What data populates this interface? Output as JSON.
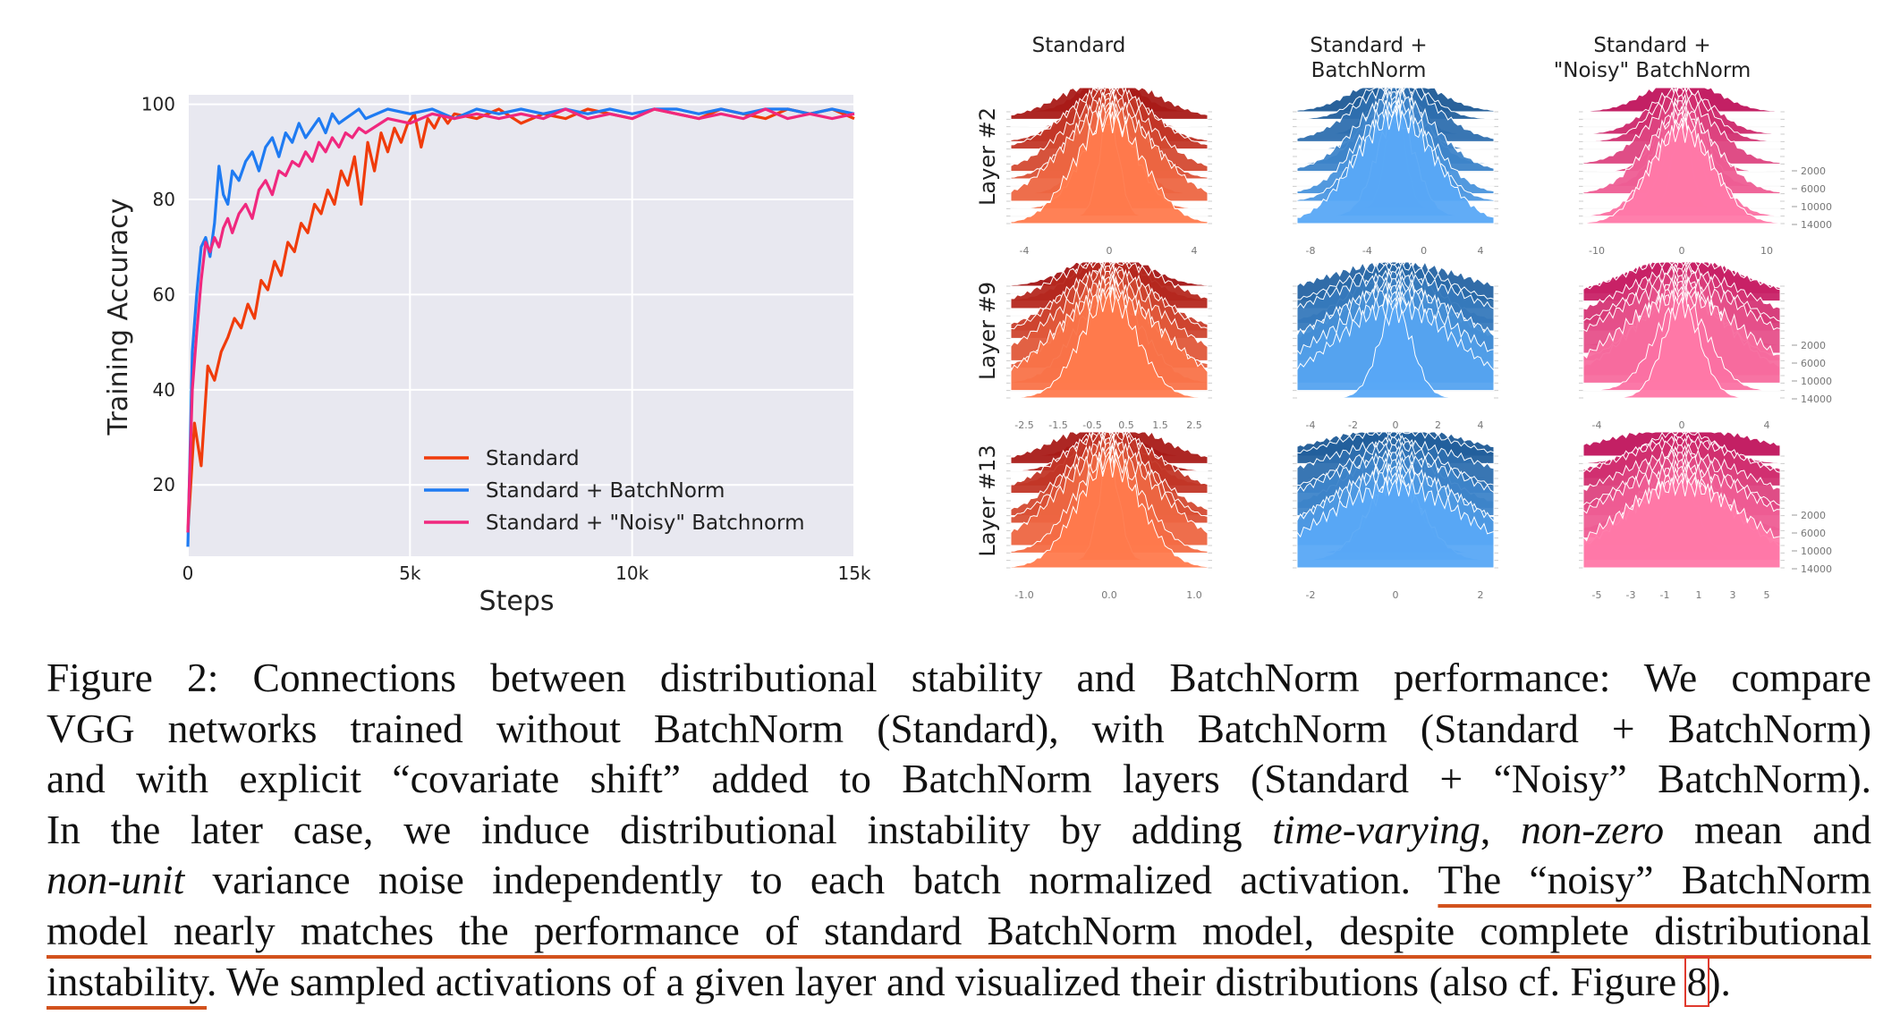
{
  "chart_data": [
    {
      "type": "line",
      "xlabel": "Steps",
      "ylabel": "Training Accuracy",
      "xlim": [
        0,
        15000
      ],
      "ylim": [
        5,
        102
      ],
      "xticks": [
        0,
        5000,
        10000,
        15000
      ],
      "xtick_labels": [
        "0",
        "5k",
        "10k",
        "15k"
      ],
      "yticks": [
        20,
        40,
        60,
        80,
        100
      ],
      "ytick_labels": [
        "20",
        "40",
        "60",
        "80",
        "100"
      ],
      "grid": true,
      "legend_position": "bottom-right",
      "series": [
        {
          "name": "Standard",
          "color": "#f03c0c",
          "x": [
            0,
            150,
            300,
            450,
            600,
            750,
            900,
            1050,
            1200,
            1350,
            1500,
            1650,
            1800,
            1950,
            2100,
            2250,
            2400,
            2550,
            2700,
            2850,
            3000,
            3150,
            3300,
            3450,
            3600,
            3750,
            3900,
            4050,
            4200,
            4350,
            4500,
            4650,
            4800,
            4950,
            5100,
            5250,
            5400,
            5550,
            5700,
            5850,
            6000,
            6500,
            7000,
            7500,
            8000,
            8500,
            9000,
            9500,
            10000,
            10500,
            11000,
            11500,
            12000,
            12500,
            13000,
            13500,
            14000,
            14500,
            15000
          ],
          "y": [
            10,
            33,
            24,
            45,
            42,
            48,
            51,
            55,
            53,
            58,
            55,
            63,
            61,
            67,
            64,
            71,
            69,
            75,
            73,
            79,
            77,
            82,
            79,
            86,
            83,
            89,
            79,
            92,
            86,
            94,
            90,
            95,
            92,
            96,
            98,
            91,
            97,
            95,
            98,
            96,
            98,
            97,
            99,
            96,
            98,
            97,
            99,
            98,
            97,
            99,
            98,
            97,
            99,
            98,
            97,
            99,
            98,
            99,
            97
          ]
        },
        {
          "name": "Standard + BatchNorm",
          "color": "#1f7bf2",
          "x": [
            0,
            100,
            200,
            300,
            400,
            500,
            600,
            700,
            800,
            900,
            1000,
            1150,
            1300,
            1450,
            1600,
            1750,
            1900,
            2050,
            2200,
            2350,
            2500,
            2650,
            2800,
            2950,
            3100,
            3250,
            3400,
            3550,
            3700,
            3850,
            4000,
            4500,
            5000,
            5500,
            6000,
            6500,
            7000,
            7500,
            8000,
            8500,
            9000,
            9500,
            10000,
            10500,
            11000,
            11500,
            12000,
            12500,
            13000,
            13500,
            14000,
            14500,
            15000
          ],
          "y": [
            7,
            48,
            60,
            70,
            72,
            68,
            75,
            87,
            81,
            79,
            86,
            84,
            88,
            90,
            86,
            91,
            93,
            89,
            94,
            92,
            96,
            93,
            95,
            97,
            94,
            98,
            96,
            97,
            98,
            99,
            97,
            99,
            98,
            99,
            97,
            99,
            98,
            99,
            98,
            99,
            98,
            99,
            98,
            99,
            99,
            98,
            99,
            98,
            99,
            99,
            98,
            99,
            98
          ]
        },
        {
          "name": "Standard + \"Noisy\" Batchnorm",
          "color": "#f0287e",
          "x": [
            0,
            100,
            200,
            300,
            400,
            500,
            600,
            700,
            800,
            900,
            1000,
            1150,
            1300,
            1450,
            1600,
            1750,
            1900,
            2050,
            2200,
            2350,
            2500,
            2650,
            2800,
            2950,
            3100,
            3250,
            3400,
            3550,
            3700,
            3850,
            4000,
            4500,
            5000,
            5500,
            6000,
            6500,
            7000,
            7500,
            8000,
            8500,
            9000,
            9500,
            10000,
            10500,
            11000,
            11500,
            12000,
            12500,
            13000,
            13500,
            14000,
            14500,
            15000
          ],
          "y": [
            10,
            40,
            52,
            63,
            71,
            69,
            72,
            70,
            74,
            76,
            73,
            77,
            79,
            76,
            82,
            84,
            81,
            86,
            85,
            88,
            87,
            90,
            88,
            92,
            90,
            93,
            91,
            94,
            93,
            95,
            94,
            97,
            96,
            98,
            97,
            98,
            97,
            98,
            97,
            99,
            97,
            98,
            97,
            99,
            98,
            97,
            98,
            97,
            99,
            97,
            98,
            97,
            98
          ]
        }
      ]
    },
    {
      "type": "ridgeline",
      "columns": [
        "Standard",
        "Standard +\nBatchNorm",
        "Standard +\n\"Noisy\" BatchNorm"
      ],
      "column_lines": [
        [
          "Standard"
        ],
        [
          "Standard +",
          "BatchNorm"
        ],
        [
          "Standard +",
          "\"Noisy\" BatchNorm"
        ]
      ],
      "rows": [
        "Layer #2",
        "Layer #9",
        "Layer #13"
      ],
      "step_labels": [
        "2000",
        "6000",
        "10000",
        "14000"
      ],
      "color_schemes": {
        "Standard": {
          "dark": "#a31414",
          "light": "#ff7a4d"
        },
        "Standard + BatchNorm": {
          "dark": "#1e5a96",
          "light": "#59a8f5"
        },
        "Standard + \"Noisy\" BatchNorm": {
          "dark": "#c0145c",
          "light": "#ff78a8"
        }
      },
      "panels": [
        {
          "row": 0,
          "col": 0,
          "xticks": [
            "-4",
            "0",
            "4"
          ],
          "spread": 0.18,
          "peak": 0.95
        },
        {
          "row": 0,
          "col": 1,
          "xticks": [
            "-8",
            "-4",
            "0",
            "4"
          ],
          "spread": 0.16,
          "peak": 0.97
        },
        {
          "row": 0,
          "col": 2,
          "xticks": [
            "-10",
            "0",
            "10"
          ],
          "spread": 0.14,
          "peak": 0.85
        },
        {
          "row": 1,
          "col": 0,
          "xticks": [
            "-2.5",
            "-1.5",
            "-0.5",
            "0.5",
            "1.5",
            "2.5"
          ],
          "spread": 0.22,
          "peak": 0.9
        },
        {
          "row": 1,
          "col": 1,
          "xticks": [
            "-4",
            "-2",
            "0",
            "2",
            "4"
          ],
          "spread": 0.3,
          "peak": 0.8
        },
        {
          "row": 1,
          "col": 2,
          "xticks": [
            "-4",
            "0",
            "4"
          ],
          "spread": 0.26,
          "peak": 0.85
        },
        {
          "row": 2,
          "col": 0,
          "xticks": [
            "-1.0",
            "0.0",
            "1.0"
          ],
          "spread": 0.2,
          "peak": 0.95
        },
        {
          "row": 2,
          "col": 1,
          "xticks": [
            "-2",
            "0",
            "2"
          ],
          "spread": 0.3,
          "peak": 0.75
        },
        {
          "row": 2,
          "col": 2,
          "xticks": [
            "-5",
            "-3",
            "-1",
            "1",
            "3",
            "5"
          ],
          "spread": 0.28,
          "peak": 0.75
        }
      ]
    }
  ],
  "caption": {
    "lines": [
      [
        {
          "t": "Figure 2: Connections between distributional stability and BatchNorm performance: We compare"
        }
      ],
      [
        {
          "t": "VGG networks trained without BatchNorm (Standard), with BatchNorm (Standard + BatchNorm)"
        }
      ],
      [
        {
          "t": "and with explicit “covariate shift” added to BatchNorm layers (Standard + “Noisy” BatchNorm)."
        }
      ],
      [
        {
          "t": "In the later case, we induce distributional instability by adding "
        },
        {
          "t": "time-varying",
          "i": true
        },
        {
          "t": ", "
        },
        {
          "t": "non-zero",
          "i": true
        },
        {
          "t": " mean and"
        }
      ],
      [
        {
          "t": "non-unit",
          "i": true
        },
        {
          "t": " variance noise independently to each batch normalized activation. "
        },
        {
          "t": "The “noisy” BatchNorm",
          "hl": true
        }
      ],
      [
        {
          "t": "model nearly matches the performance of standard BatchNorm model, despite complete distributional",
          "hl": true
        }
      ],
      [
        {
          "t": "instability",
          "hl": true
        },
        {
          "t": ". We sampled activations of a given layer and visualized their distributions (also cf. Figure "
        },
        {
          "t": "8",
          "box": true
        },
        {
          "t": ")."
        }
      ]
    ]
  }
}
